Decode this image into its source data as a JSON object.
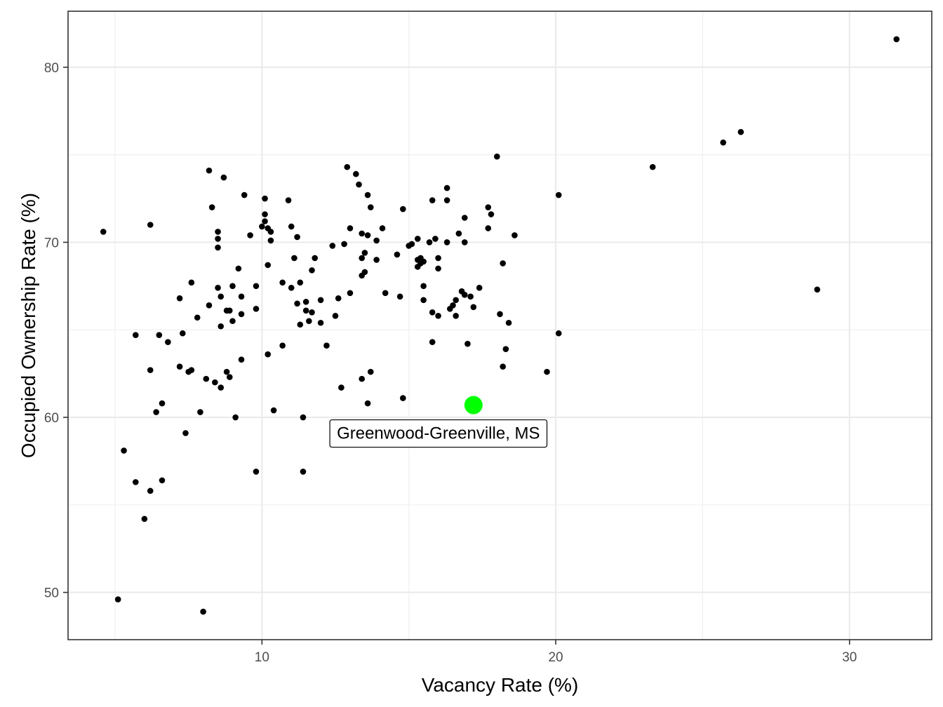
{
  "chart_data": {
    "type": "scatter",
    "title": "",
    "xlabel": "Vacancy Rate (%)",
    "ylabel": "Occupied Ownership Rate (%)",
    "xlim": [
      3.4,
      32.8
    ],
    "ylim": [
      47.3,
      83.2
    ],
    "x_ticks": [
      10,
      20,
      30
    ],
    "y_ticks": [
      50,
      60,
      70,
      80
    ],
    "x_tick_labels": [
      "10",
      "20",
      "30"
    ],
    "y_tick_labels": [
      "50",
      "60",
      "70",
      "80"
    ],
    "grid": true,
    "point_color": "#000000",
    "highlight_color": "#00ff00",
    "highlight": {
      "x": 17.2,
      "y": 60.7,
      "label": "Greenwood-Greenville, MS"
    },
    "points": [
      [
        4.6,
        70.6
      ],
      [
        5.1,
        49.6
      ],
      [
        5.3,
        58.1
      ],
      [
        5.7,
        56.3
      ],
      [
        5.7,
        64.7
      ],
      [
        6.0,
        54.2
      ],
      [
        6.2,
        71.0
      ],
      [
        6.2,
        62.7
      ],
      [
        6.2,
        55.8
      ],
      [
        6.4,
        60.3
      ],
      [
        6.5,
        64.7
      ],
      [
        6.6,
        60.8
      ],
      [
        6.6,
        56.4
      ],
      [
        6.8,
        64.3
      ],
      [
        7.2,
        62.9
      ],
      [
        7.2,
        66.8
      ],
      [
        7.3,
        64.8
      ],
      [
        7.4,
        59.1
      ],
      [
        7.5,
        62.6
      ],
      [
        7.6,
        62.7
      ],
      [
        7.6,
        67.7
      ],
      [
        7.8,
        65.7
      ],
      [
        7.9,
        60.3
      ],
      [
        8.1,
        62.2
      ],
      [
        8.0,
        48.9
      ],
      [
        8.2,
        66.4
      ],
      [
        8.2,
        74.1
      ],
      [
        8.3,
        72.0
      ],
      [
        8.4,
        62.0
      ],
      [
        8.5,
        69.7
      ],
      [
        8.5,
        70.2
      ],
      [
        8.5,
        70.6
      ],
      [
        8.5,
        67.4
      ],
      [
        8.6,
        66.9
      ],
      [
        8.6,
        65.2
      ],
      [
        8.6,
        61.7
      ],
      [
        8.7,
        73.7
      ],
      [
        8.8,
        66.1
      ],
      [
        8.8,
        62.6
      ],
      [
        8.9,
        62.3
      ],
      [
        8.9,
        66.1
      ],
      [
        9.0,
        65.5
      ],
      [
        9.0,
        67.5
      ],
      [
        9.1,
        60.0
      ],
      [
        9.2,
        68.5
      ],
      [
        9.3,
        63.3
      ],
      [
        9.3,
        66.9
      ],
      [
        9.3,
        65.9
      ],
      [
        9.4,
        72.7
      ],
      [
        9.6,
        70.4
      ],
      [
        9.8,
        67.5
      ],
      [
        9.8,
        66.2
      ],
      [
        9.8,
        56.9
      ],
      [
        10.0,
        70.9
      ],
      [
        10.1,
        72.5
      ],
      [
        10.1,
        71.6
      ],
      [
        10.1,
        71.2
      ],
      [
        10.2,
        70.8
      ],
      [
        10.2,
        68.7
      ],
      [
        10.2,
        63.6
      ],
      [
        10.3,
        70.6
      ],
      [
        10.3,
        70.1
      ],
      [
        10.4,
        60.4
      ],
      [
        10.7,
        67.7
      ],
      [
        10.7,
        64.1
      ],
      [
        10.9,
        72.4
      ],
      [
        11.0,
        67.4
      ],
      [
        11.0,
        70.9
      ],
      [
        11.1,
        69.1
      ],
      [
        11.2,
        66.5
      ],
      [
        11.2,
        70.3
      ],
      [
        11.3,
        65.3
      ],
      [
        11.3,
        67.7
      ],
      [
        11.4,
        60.0
      ],
      [
        11.4,
        56.9
      ],
      [
        11.5,
        66.1
      ],
      [
        11.5,
        66.6
      ],
      [
        11.6,
        65.5
      ],
      [
        11.7,
        66.0
      ],
      [
        11.7,
        68.4
      ],
      [
        11.8,
        69.1
      ],
      [
        12.0,
        65.4
      ],
      [
        12.0,
        66.7
      ],
      [
        12.2,
        64.1
      ],
      [
        12.4,
        69.8
      ],
      [
        12.5,
        65.8
      ],
      [
        12.6,
        66.8
      ],
      [
        12.7,
        61.7
      ],
      [
        12.8,
        69.9
      ],
      [
        12.9,
        74.3
      ],
      [
        13.0,
        67.1
      ],
      [
        13.0,
        70.8
      ],
      [
        13.2,
        73.9
      ],
      [
        13.3,
        73.3
      ],
      [
        13.4,
        69.1
      ],
      [
        13.4,
        70.5
      ],
      [
        13.4,
        68.1
      ],
      [
        13.4,
        62.2
      ],
      [
        13.5,
        69.4
      ],
      [
        13.5,
        68.3
      ],
      [
        13.6,
        72.7
      ],
      [
        13.6,
        70.4
      ],
      [
        13.6,
        60.8
      ],
      [
        13.7,
        72.0
      ],
      [
        13.7,
        62.6
      ],
      [
        13.9,
        69.0
      ],
      [
        13.9,
        70.1
      ],
      [
        14.1,
        70.8
      ],
      [
        14.2,
        67.1
      ],
      [
        14.6,
        69.3
      ],
      [
        14.7,
        66.9
      ],
      [
        14.8,
        71.9
      ],
      [
        14.8,
        61.1
      ],
      [
        15.0,
        69.8
      ],
      [
        15.1,
        69.9
      ],
      [
        15.3,
        70.2
      ],
      [
        15.3,
        69.0
      ],
      [
        15.3,
        68.6
      ],
      [
        15.4,
        68.8
      ],
      [
        15.4,
        69.1
      ],
      [
        15.5,
        67.5
      ],
      [
        15.5,
        68.9
      ],
      [
        15.5,
        66.7
      ],
      [
        15.7,
        70.0
      ],
      [
        15.8,
        72.4
      ],
      [
        15.8,
        66.0
      ],
      [
        15.8,
        64.3
      ],
      [
        15.9,
        70.2
      ],
      [
        16.0,
        69.1
      ],
      [
        16.0,
        68.5
      ],
      [
        16.0,
        65.8
      ],
      [
        16.3,
        70.0
      ],
      [
        16.3,
        73.1
      ],
      [
        16.3,
        72.4
      ],
      [
        16.4,
        66.2
      ],
      [
        16.5,
        66.4
      ],
      [
        16.6,
        66.7
      ],
      [
        16.6,
        65.8
      ],
      [
        16.7,
        70.5
      ],
      [
        16.8,
        67.2
      ],
      [
        16.9,
        71.4
      ],
      [
        16.9,
        70.0
      ],
      [
        16.9,
        67.0
      ],
      [
        17.0,
        64.2
      ],
      [
        17.4,
        67.4
      ],
      [
        17.7,
        70.8
      ],
      [
        18.0,
        74.9
      ],
      [
        18.2,
        68.8
      ],
      [
        18.2,
        62.9
      ],
      [
        18.3,
        63.9
      ],
      [
        17.1,
        66.9
      ],
      [
        17.2,
        66.3
      ],
      [
        17.7,
        72.0
      ],
      [
        17.8,
        71.6
      ],
      [
        18.1,
        65.9
      ],
      [
        18.4,
        65.4
      ],
      [
        18.6,
        70.4
      ],
      [
        19.7,
        62.6
      ],
      [
        20.1,
        72.7
      ],
      [
        20.1,
        64.8
      ],
      [
        23.3,
        74.3
      ],
      [
        25.7,
        75.7
      ],
      [
        26.3,
        76.3
      ],
      [
        28.9,
        67.3
      ],
      [
        31.6,
        81.6
      ]
    ]
  }
}
